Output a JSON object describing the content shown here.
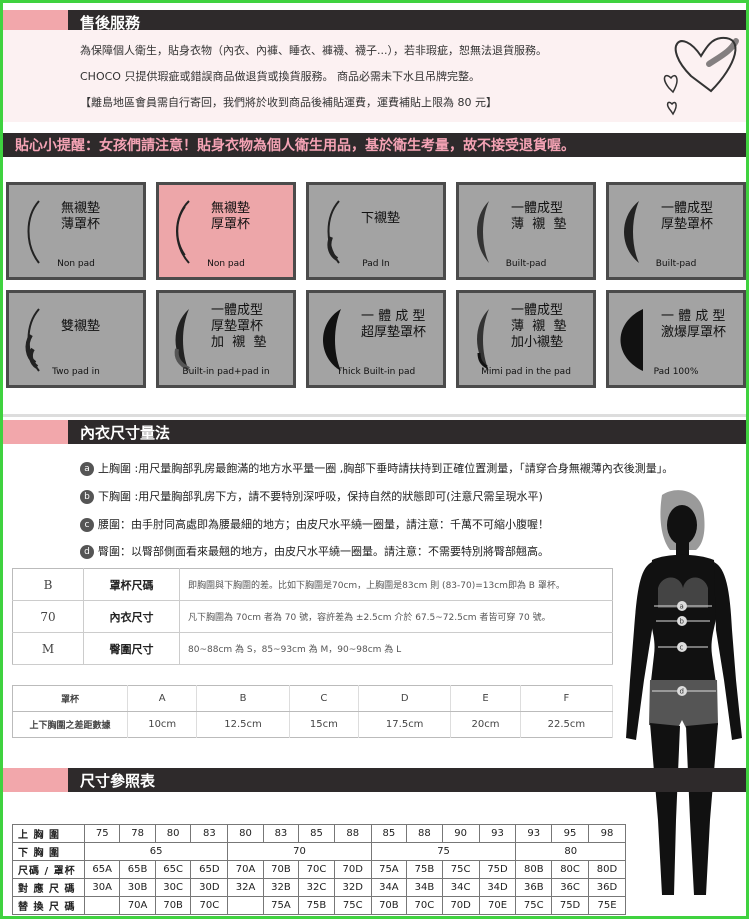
{
  "after_sales": {
    "title": "售後服務",
    "line1": "為保障個人衛生，貼身衣物（內衣、內褲、睡衣、褲襪、襪子...），若非瑕疵，恕無法退貨服務。",
    "line2": "CHOCO 只提供瑕疵或錯誤商品做退貨或換貨服務。 商品必需未下水且吊牌完整。",
    "line3": "【離島地區會員需自行寄回，我們將於收到商品後補貼運費，運費補貼上限為 80 元】"
  },
  "tip": "貼心小提醒：女孩們請注意！貼身衣物為個人衛生用品，基於衛生考量，故不接受退貨喔。",
  "pads": [
    {
      "name": "無襯墊\n薄罩杯",
      "sub": "Non pad"
    },
    {
      "name": "無襯墊\n厚罩杯",
      "sub": "Non pad"
    },
    {
      "name": "下襯墊",
      "sub": "Pad In"
    },
    {
      "name": "一體成型\n薄  襯  墊",
      "sub": "Built-pad"
    },
    {
      "name": "一體成型\n厚墊罩杯",
      "sub": "Built-pad"
    },
    {
      "name": "雙襯墊",
      "sub": "Two pad in"
    },
    {
      "name": "一體成型\n厚墊罩杯\n加  襯  墊",
      "sub": "Built-in pad+pad in"
    },
    {
      "name": "一 體 成 型\n超厚墊罩杯",
      "sub": "Thick Built-in pad"
    },
    {
      "name": "一體成型\n薄  襯  墊\n加小襯墊",
      "sub": "Mimi pad in the pad"
    },
    {
      "name": "一 體 成 型\n激爆厚罩杯",
      "sub": "Pad 100%"
    }
  ],
  "measure": {
    "title": "內衣尺寸量法",
    "a": "上胸圍 :用尺量胸部乳房最飽滿的地方水平量一圈 ,胸部下垂時請扶持到正確位置測量，「請穿合身無襯薄內衣後測量」。",
    "b": "下胸圍 :用尺量胸部乳房下方，請不要特別深呼吸，保持自然的狀態即可(注意尺需呈現水平)",
    "c": "腰圍：由手肘同高處即為腰最細的地方；由皮尺水平繞一圈量，請注意：千萬不可縮小腹喔！",
    "d": "臀圍：以臀部側面看來最翹的地方，由皮尺水平繞一圈量。請注意：不需要特別將臀部翹高。",
    "labels": [
      "a",
      "b",
      "c",
      "d"
    ]
  },
  "size_rules": [
    {
      "code": "B",
      "label": "罩杯尺碼",
      "desc": "即胸圍與下胸圍的差。比如下胸圍是70cm，上胸圍是83cm 則 (83-70)=13cm即為 B 罩杯。"
    },
    {
      "code": "70",
      "label": "內衣尺寸",
      "desc": "凡下胸圍為 70cm 者為 70 號，容許差為 ±2.5cm 介於 67.5~72.5cm 者皆可穿 70 號。"
    },
    {
      "code": "M",
      "label": "臀圍尺寸",
      "desc": "80~88cm 為 S，85~93cm 為 M，90~98cm 為 L"
    }
  ],
  "cup_table": {
    "header": [
      "罩杯",
      "A",
      "B",
      "C",
      "D",
      "E",
      "F"
    ],
    "row": [
      "上下胸圍之差距數據",
      "10cm",
      "12.5cm",
      "15cm",
      "17.5cm",
      "20cm",
      "22.5cm"
    ]
  },
  "size_chart": {
    "title": "尺寸參照表",
    "rows": [
      {
        "label": "上  胸  圍",
        "cells": [
          "75",
          "78",
          "80",
          "83",
          "80",
          "83",
          "85",
          "88",
          "85",
          "88",
          "90",
          "93",
          "93",
          "95",
          "98"
        ]
      },
      {
        "label": "下  胸  圍",
        "groups": [
          "65",
          "70",
          "75",
          "80"
        ]
      },
      {
        "label": "尺碼 / 罩杯",
        "cells": [
          "65A",
          "65B",
          "65C",
          "65D",
          "70A",
          "70B",
          "70C",
          "70D",
          "75A",
          "75B",
          "75C",
          "75D",
          "80B",
          "80C",
          "80D"
        ]
      },
      {
        "label": "對 應 尺 碼",
        "cells": [
          "30A",
          "30B",
          "30C",
          "30D",
          "32A",
          "32B",
          "32C",
          "32D",
          "34A",
          "34B",
          "34C",
          "34D",
          "36B",
          "36C",
          "36D"
        ]
      },
      {
        "label": "替 換 尺 碼",
        "cells": [
          "",
          "70A",
          "70B",
          "70C",
          "",
          "75A",
          "75B",
          "75C",
          "70B",
          "70C",
          "70D",
          "70E",
          "75C",
          "75D",
          "75E"
        ]
      }
    ]
  },
  "colors": {
    "accent": "#f2a7ab",
    "dark": "#2e2a2b",
    "tip_text": "#f5a3b5",
    "frame": "#3fd23f"
  }
}
